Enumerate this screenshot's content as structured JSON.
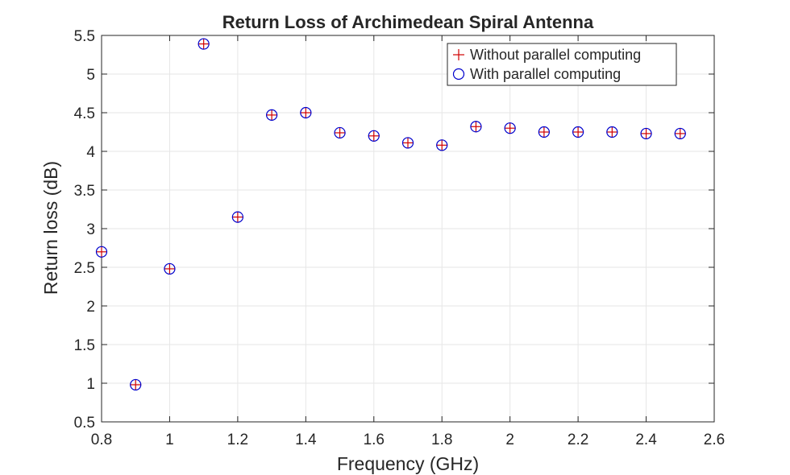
{
  "chart_data": {
    "type": "scatter",
    "title": "Return Loss of Archimedean Spiral Antenna",
    "xlabel": "Frequency (GHz)",
    "ylabel": "Return loss (dB)",
    "xlim": [
      0.8,
      2.6
    ],
    "ylim": [
      0.5,
      5.5
    ],
    "xticks": [
      "0.8",
      "1",
      "1.2",
      "1.4",
      "1.6",
      "1.8",
      "2",
      "2.2",
      "2.4",
      "2.6"
    ],
    "yticks": [
      "0.5",
      "1",
      "1.5",
      "2",
      "2.5",
      "3",
      "3.5",
      "4",
      "4.5",
      "5",
      "5.5"
    ],
    "grid": true,
    "legend_position": "top-right",
    "x": [
      0.8,
      0.9,
      1.0,
      1.1,
      1.2,
      1.3,
      1.4,
      1.5,
      1.6,
      1.7,
      1.8,
      1.9,
      2.0,
      2.1,
      2.2,
      2.3,
      2.4,
      2.5
    ],
    "series": [
      {
        "name": "Without parallel computing",
        "marker": "plus",
        "color": "#d00000",
        "values": [
          2.7,
          0.98,
          2.48,
          5.39,
          3.15,
          4.47,
          4.5,
          4.24,
          4.2,
          4.11,
          4.08,
          4.32,
          4.3,
          4.25,
          4.25,
          4.25,
          4.23,
          4.23
        ]
      },
      {
        "name": "With parallel computing",
        "marker": "circle",
        "color": "#0000cc",
        "values": [
          2.7,
          0.98,
          2.48,
          5.39,
          3.15,
          4.47,
          4.5,
          4.24,
          4.2,
          4.11,
          4.08,
          4.32,
          4.3,
          4.25,
          4.25,
          4.25,
          4.23,
          4.23
        ]
      }
    ]
  }
}
